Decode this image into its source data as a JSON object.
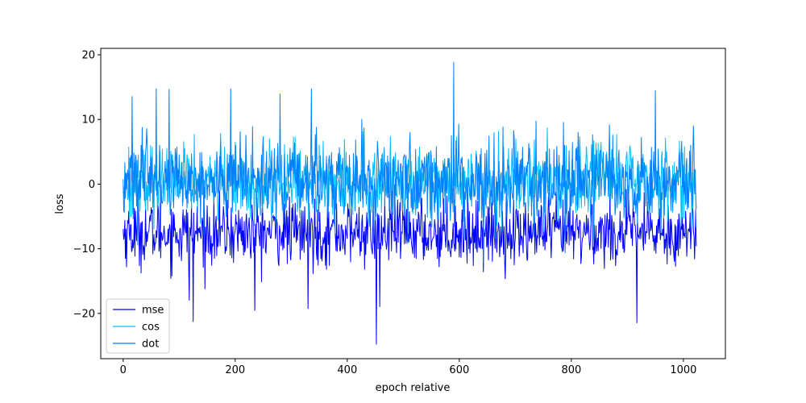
{
  "chart_data": {
    "type": "line",
    "title": "",
    "xlabel": "epoch relative",
    "ylabel": "loss",
    "xlim": [
      -40,
      1075
    ],
    "ylim": [
      -27,
      21
    ],
    "x_ticks": [
      0,
      200,
      400,
      600,
      800,
      1000
    ],
    "y_ticks": [
      -20,
      -10,
      0,
      10,
      20
    ],
    "x_tick_labels": [
      "0",
      "200",
      "400",
      "600",
      "800",
      "1000"
    ],
    "y_tick_labels": [
      "−20",
      "−10",
      "0",
      "10",
      "20"
    ],
    "grid": false,
    "legend_position": "lower-left",
    "n_points": 1024,
    "series": [
      {
        "name": "mse",
        "color": "#0000ff",
        "center": -7.5,
        "noise_sd": 2.5,
        "extremes": [
          {
            "x": 125,
            "y": -21.3
          },
          {
            "x": 452,
            "y": -24.8
          },
          {
            "x": 917,
            "y": -21.5
          },
          {
            "x": 235,
            "y": -19.6
          },
          {
            "x": 118,
            "y": -18.0
          },
          {
            "x": 330,
            "y": -19.3
          },
          {
            "x": 458,
            "y": -19.0
          }
        ]
      },
      {
        "name": "cos",
        "color": "#00bfff",
        "center": 0.5,
        "noise_sd": 2.8,
        "extremes": []
      },
      {
        "name": "dot",
        "color": "#0080ff",
        "center": 0.5,
        "noise_sd": 3.2,
        "extremes": [
          {
            "x": 59,
            "y": 14.8
          },
          {
            "x": 192,
            "y": 14.8
          },
          {
            "x": 336,
            "y": 14.8
          },
          {
            "x": 590,
            "y": 18.9
          },
          {
            "x": 950,
            "y": 14.5
          },
          {
            "x": 16,
            "y": 13.6
          },
          {
            "x": 280,
            "y": 14.0
          }
        ]
      }
    ]
  }
}
